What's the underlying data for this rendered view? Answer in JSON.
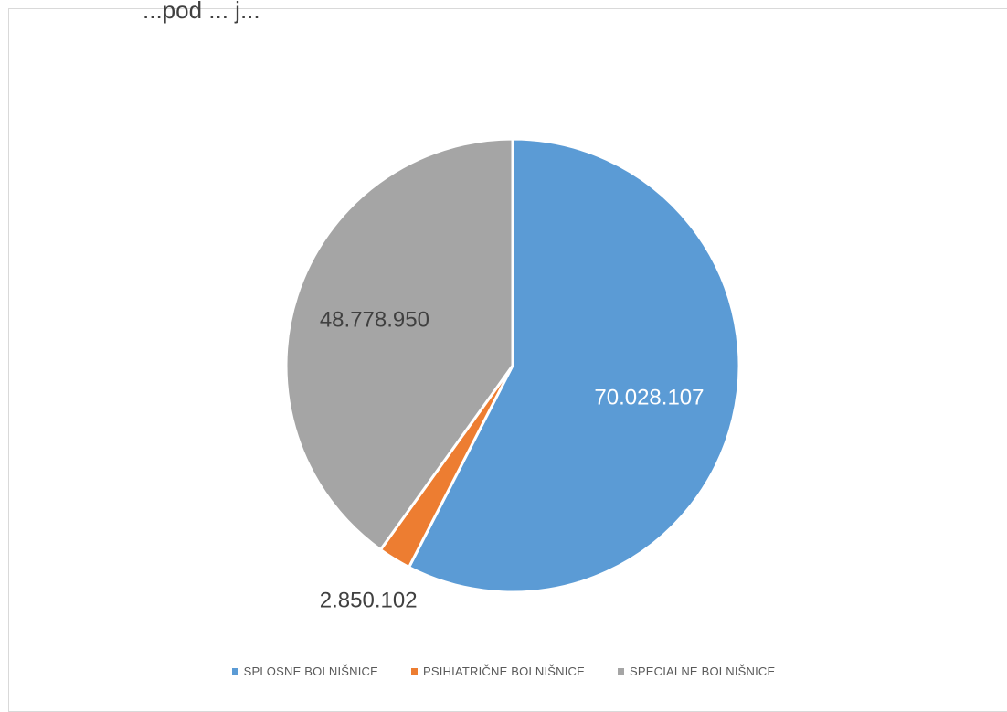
{
  "chart_data": {
    "type": "pie",
    "title": "",
    "title_fragment": "...pod ... j...",
    "categories": [
      "SPLOSNE BOLNIŠNICE",
      "PSIHIATRIČNE BOLNIŠNICE",
      "SPECIALNE BOLNIŠNICE"
    ],
    "values": [
      70028107,
      2850102,
      48778950
    ],
    "data_labels": [
      "70.028.107",
      "2.850.102",
      "48.778.950"
    ],
    "colors": [
      "#5b9bd5",
      "#ed7d31",
      "#a5a5a5"
    ],
    "label_colors": [
      "#ffffff",
      "#404040",
      "#404040"
    ],
    "legend_position": "bottom",
    "start_angle_deg": 0,
    "direction": "clockwise"
  }
}
